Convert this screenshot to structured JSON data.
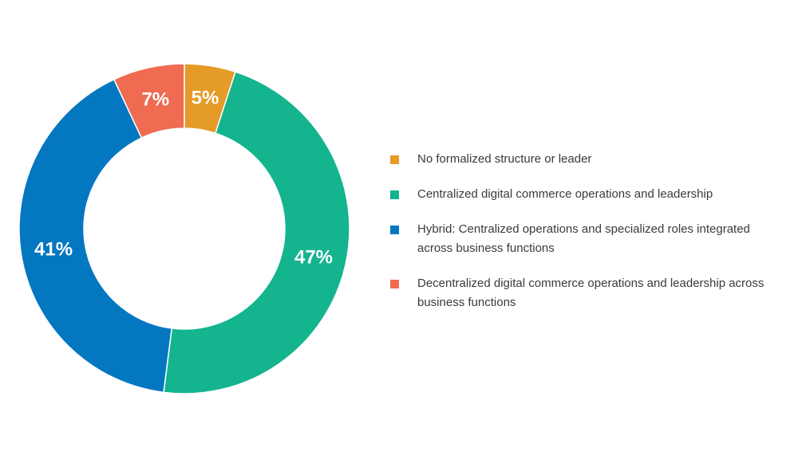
{
  "chart_data": {
    "type": "pie",
    "donut": true,
    "title": "",
    "categories": [
      "No formalized structure or leader",
      "Centralized digital commerce operations and leadership",
      "Hybrid: Centralized operations and specialized roles integrated across business functions",
      "Decentralized digital commerce operations and leadership across business functions"
    ],
    "values": [
      5,
      47,
      41,
      7
    ],
    "value_labels": [
      "5%",
      "47%",
      "41%",
      "7%"
    ],
    "colors": [
      "#e49b27",
      "#13b48e",
      "#0477c1",
      "#ef6b52"
    ],
    "legend_position": "right"
  }
}
